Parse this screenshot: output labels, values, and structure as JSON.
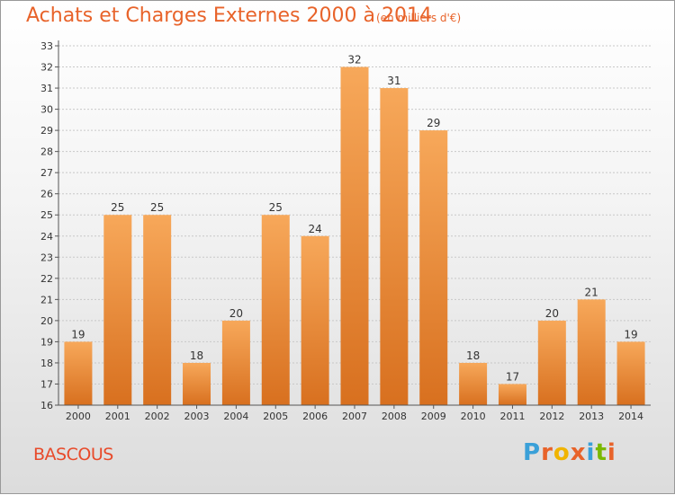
{
  "header": {
    "title": "Achats et Charges Externes 2000 à 2014",
    "subtitle": "(en milliers d'€)"
  },
  "footer": {
    "place": "BASCOUS",
    "logo_letters": [
      "P",
      "r",
      "o",
      "x",
      "i",
      "t",
      "i"
    ],
    "logo_colors": [
      "#3aa0d8",
      "#e8632a",
      "#f0b400",
      "#e8632a",
      "#3aa0d8",
      "#7ab800",
      "#e8632a"
    ]
  },
  "colors": {
    "bar_top": "#f7a85a",
    "bar_bottom": "#d8701f",
    "grid": "#c8c8c8",
    "axis": "#555555",
    "text": "#333333"
  },
  "chart_data": {
    "type": "bar",
    "categories": [
      "2000",
      "2001",
      "2002",
      "2003",
      "2004",
      "2005",
      "2006",
      "2007",
      "2008",
      "2009",
      "2010",
      "2011",
      "2012",
      "2013",
      "2014"
    ],
    "values": [
      19,
      25,
      25,
      18,
      20,
      25,
      24,
      32,
      31,
      29,
      18,
      17,
      20,
      21,
      19
    ],
    "title": "Achats et Charges Externes 2000 à 2014",
    "ylim": [
      16,
      33
    ],
    "yticks": [
      16,
      17,
      18,
      19,
      20,
      21,
      22,
      23,
      24,
      25,
      26,
      27,
      28,
      29,
      30,
      31,
      32,
      33
    ],
    "grid": true
  }
}
